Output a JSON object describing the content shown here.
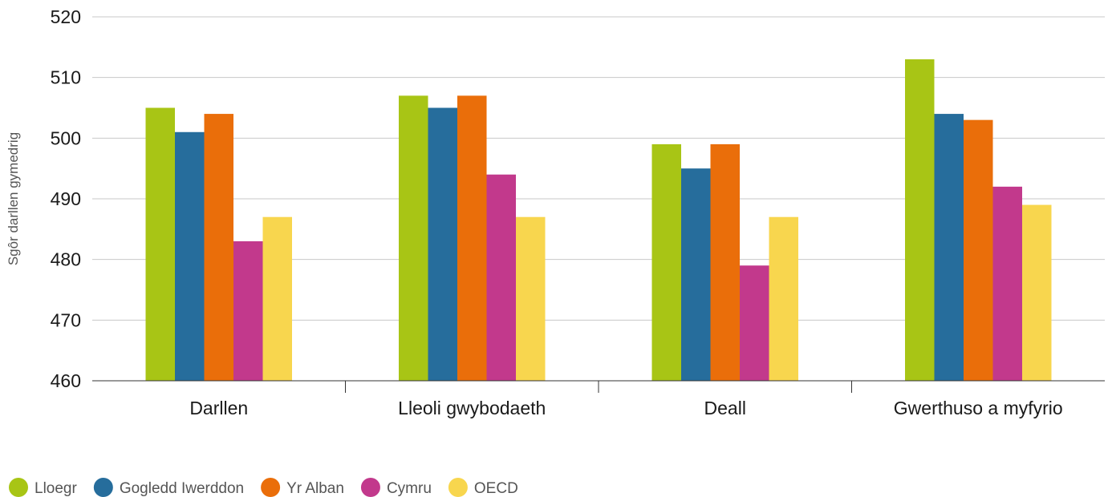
{
  "chart_data": {
    "type": "bar",
    "title": "",
    "xlabel": "",
    "ylabel": "Sgôr darllen gymedrig",
    "ylim": [
      460,
      520
    ],
    "yticks": [
      460,
      470,
      480,
      490,
      500,
      510,
      520
    ],
    "grid": true,
    "legend_position": "bottom-left",
    "categories": [
      "Darllen",
      "Lleoli gwybodaeth",
      "Deall",
      "Gwerthuso a myfyrio"
    ],
    "series": [
      {
        "name": "Lloegr",
        "color": "#a8c515",
        "values": [
          505,
          507,
          499,
          513
        ]
      },
      {
        "name": "Gogledd Iwerddon",
        "color": "#266d9c",
        "values": [
          501,
          505,
          495,
          504
        ]
      },
      {
        "name": "Yr Alban",
        "color": "#ea6e0a",
        "values": [
          504,
          507,
          499,
          503
        ]
      },
      {
        "name": "Cymru",
        "color": "#c2398c",
        "values": [
          483,
          494,
          479,
          492
        ]
      },
      {
        "name": "OECD",
        "color": "#f8d64e",
        "values": [
          487,
          487,
          487,
          489
        ]
      }
    ]
  }
}
